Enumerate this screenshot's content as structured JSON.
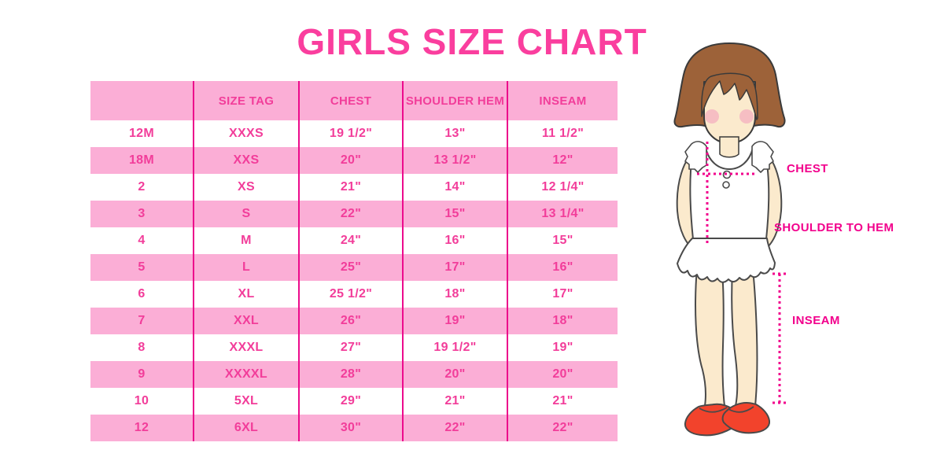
{
  "title": "GIRLS SIZE CHART",
  "chart_data": {
    "type": "table",
    "title": "GIRLS SIZE CHART",
    "columns": [
      "",
      "SIZE TAG",
      "CHEST",
      "SHOULDER HEM",
      "INSEAM"
    ],
    "rows": [
      [
        "12M",
        "XXXS",
        "19 1/2\"",
        "13\"",
        "11 1/2\""
      ],
      [
        "18M",
        "XXS",
        "20\"",
        "13 1/2\"",
        "12\""
      ],
      [
        "2",
        "XS",
        "21\"",
        "14\"",
        "12 1/4\""
      ],
      [
        "3",
        "S",
        "22\"",
        "15\"",
        "13 1/4\""
      ],
      [
        "4",
        "M",
        "24\"",
        "16\"",
        "15\""
      ],
      [
        "5",
        "L",
        "25\"",
        "17\"",
        "16\""
      ],
      [
        "6",
        "XL",
        "25 1/2\"",
        "18\"",
        "17\""
      ],
      [
        "7",
        "XXL",
        "26\"",
        "19\"",
        "18\""
      ],
      [
        "8",
        "XXXL",
        "27\"",
        "19 1/2\"",
        "19\""
      ],
      [
        "9",
        "XXXXL",
        "28\"",
        "20\"",
        "20\""
      ],
      [
        "10",
        "5XL",
        "29\"",
        "21\"",
        "21\""
      ],
      [
        "12",
        "6XL",
        "30\"",
        "22\"",
        "22\""
      ]
    ],
    "row_stripe_pattern": "white / pink alternating, starting white",
    "legend_position": "none",
    "grid": "vertical magenta dividers only"
  },
  "figure": {
    "labels": {
      "chest": "CHEST",
      "shoulder_to_hem": "SHOULDER TO HEM",
      "inseam": "INSEAM"
    }
  },
  "colors": {
    "title_pink": "#FA3E9E",
    "table_text_pink": "#F23D9A",
    "row_light_pink": "#FBAED6",
    "divider_magenta": "#EC0B8C",
    "label_magenta": "#F2008C",
    "hair_brown": "#9D6239",
    "skin": "#FBEACD",
    "blush": "#F5B3C0",
    "shoe_red": "#F2432C"
  }
}
